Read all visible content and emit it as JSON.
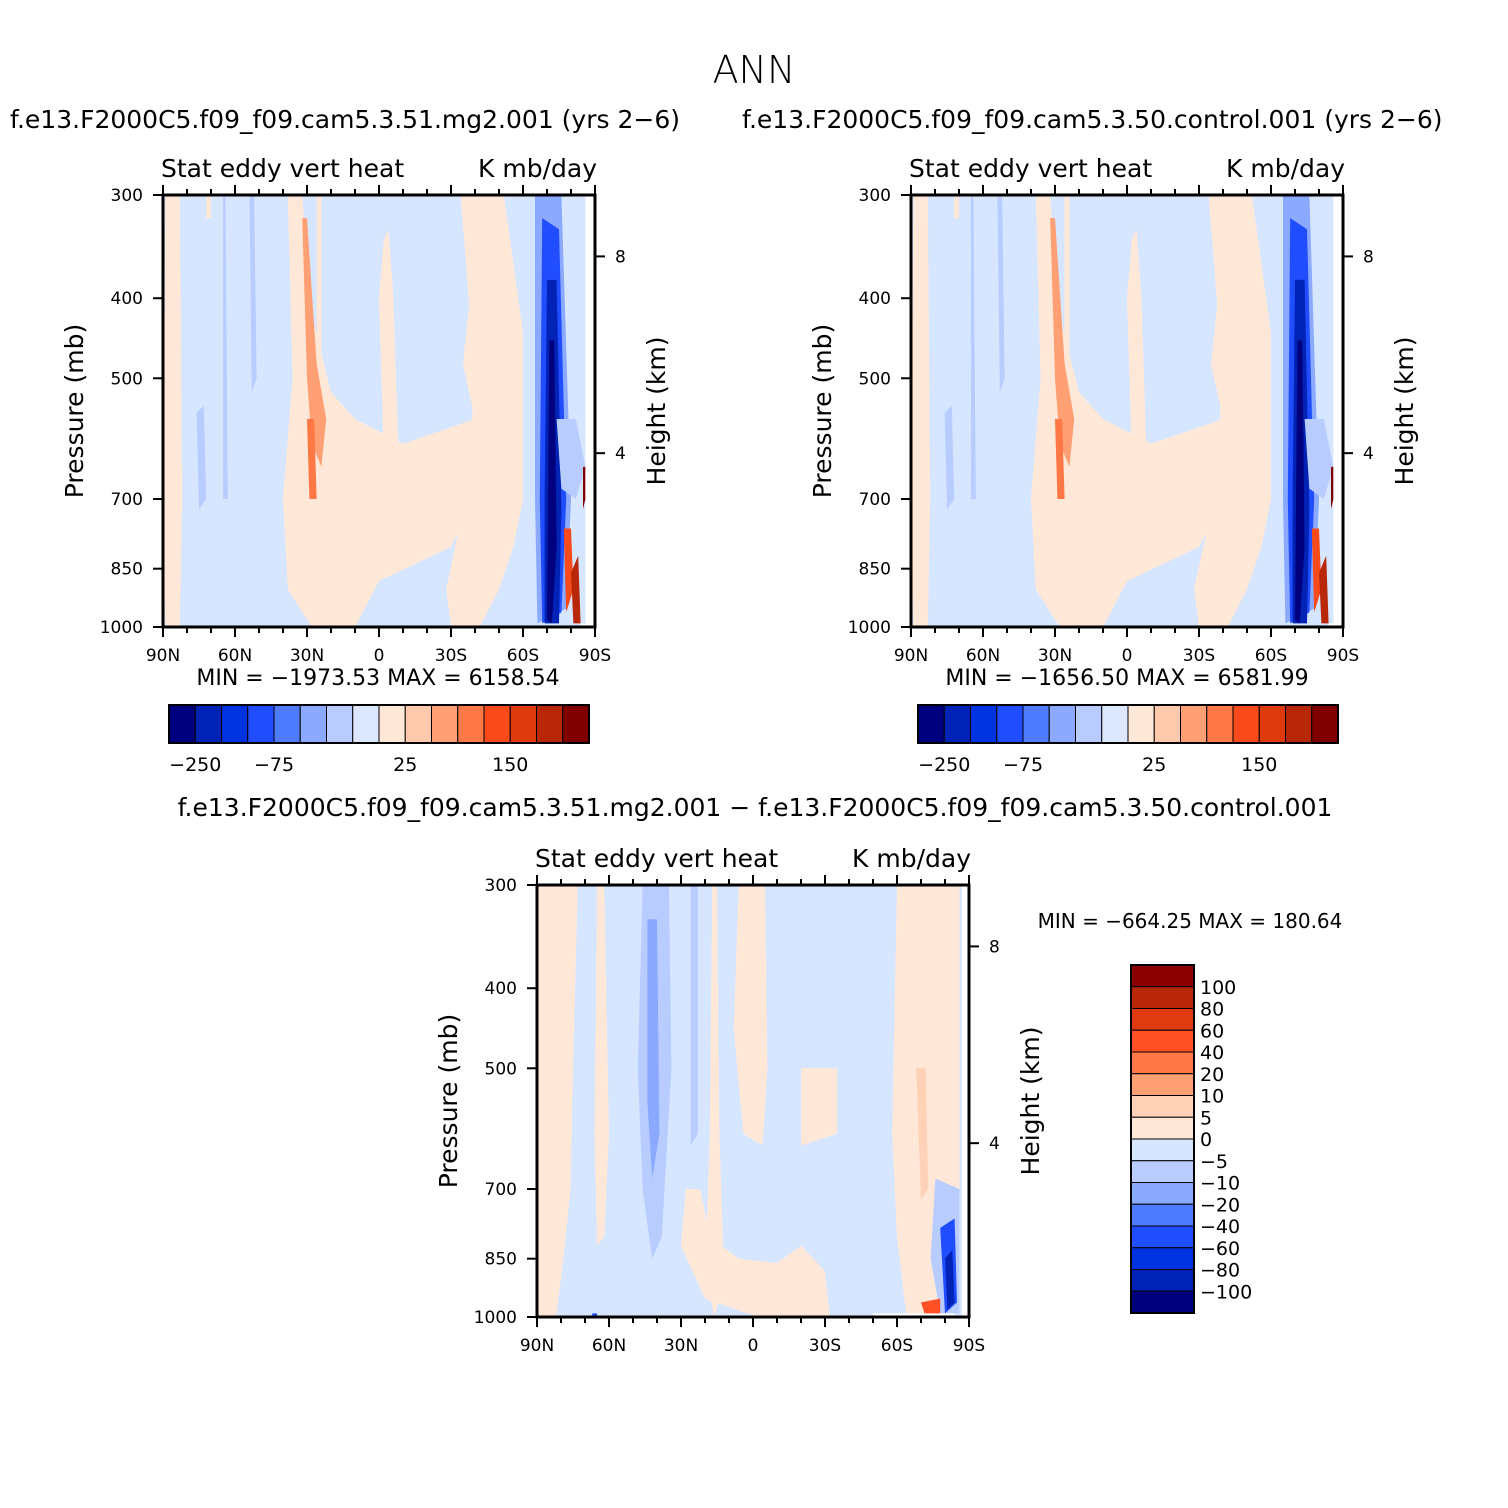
{
  "page_title": "ANN",
  "colors": {
    "top_palette": [
      "#00007f",
      "#0022b5",
      "#0033e0",
      "#1f4dff",
      "#4f7cff",
      "#8aa9ff",
      "#b8ccff",
      "#dde8ff",
      "#ffe8d8",
      "#ffc9ad",
      "#ffa074",
      "#ff7845",
      "#f94a1b",
      "#de3a0d",
      "#b82808",
      "#800000"
    ],
    "diff_palette": [
      "#00007f",
      "#0022b5",
      "#0033e0",
      "#1f4dff",
      "#4f7cff",
      "#8aa9ff",
      "#b8ccff",
      "#d6e6ff",
      "#ffe8d8",
      "#ffd2b8",
      "#ffa074",
      "#ff7845",
      "#ff5026",
      "#e03a10",
      "#b82808",
      "#8b0000"
    ],
    "neg_fill": "#d6e6ff",
    "pos_fill": "#ffe8d8"
  },
  "chart_data": [
    {
      "type": "heatmap",
      "id": "panel-mg2",
      "case_title": "f.e13.F2000C5.f09_f09.cam5.3.51.mg2.001  (yrs 2-6)",
      "variable": "Stat eddy vert heat",
      "units": "K mb/day",
      "ylabel": "Pressure (mb)",
      "ylabel_right": "Height (km)",
      "x_ticks": [
        "90N",
        "60N",
        "30N",
        "0",
        "30S",
        "60S",
        "90S"
      ],
      "y_ticks": [
        300,
        400,
        500,
        700,
        850,
        1000
      ],
      "right_ticks": [
        8,
        4
      ],
      "ylim": [
        1000,
        300
      ],
      "min_label": "MIN = -1973.53",
      "max_label": "MAX = 6158.54",
      "colorbar_ticks": [
        "-250",
        "-75",
        "25",
        "150"
      ],
      "colorbar_levels": 16
    },
    {
      "type": "heatmap",
      "id": "panel-control",
      "case_title": "f.e13.F2000C5.f09_f09.cam5.3.50.control.001  (yrs 2-6)",
      "variable": "Stat eddy vert heat",
      "units": "K mb/day",
      "ylabel": "Pressure (mb)",
      "ylabel_right": "Height (km)",
      "x_ticks": [
        "90N",
        "60N",
        "30N",
        "0",
        "30S",
        "60S",
        "90S"
      ],
      "y_ticks": [
        300,
        400,
        500,
        700,
        850,
        1000
      ],
      "right_ticks": [
        8,
        4
      ],
      "ylim": [
        1000,
        300
      ],
      "min_label": "MIN = -1656.50",
      "max_label": "MAX = 6581.99",
      "colorbar_ticks": [
        "-250",
        "-75",
        "25",
        "150"
      ],
      "colorbar_levels": 16
    },
    {
      "type": "heatmap",
      "id": "panel-diff",
      "case_title": "f.e13.F2000C5.f09_f09.cam5.3.51.mg2.001 - f.e13.F2000C5.f09_f09.cam5.3.50.control.001",
      "variable": "Stat eddy vert heat",
      "units": "K mb/day",
      "ylabel": "Pressure (mb)",
      "ylabel_right": "Height (km)",
      "x_ticks": [
        "90N",
        "60N",
        "30N",
        "0",
        "30S",
        "60S",
        "90S"
      ],
      "y_ticks": [
        300,
        400,
        500,
        700,
        850,
        1000
      ],
      "right_ticks": [
        8,
        4
      ],
      "ylim": [
        1000,
        300
      ],
      "min_label": "MIN = -664.25",
      "max_label": "MAX = 180.64",
      "colorbar_levels_labels": [
        "100",
        "80",
        "60",
        "40",
        "20",
        "10",
        "5",
        "0",
        "-5",
        "-10",
        "-20",
        "-40",
        "-60",
        "-80",
        "-100"
      ]
    }
  ]
}
